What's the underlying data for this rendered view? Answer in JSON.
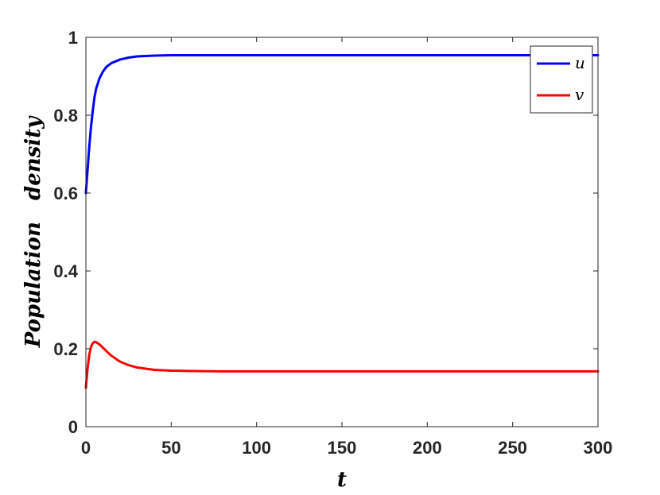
{
  "chart_data": {
    "type": "line",
    "title": "",
    "xlabel": "t",
    "ylabel": "Population   density",
    "xlim": [
      0,
      300
    ],
    "ylim": [
      0,
      1
    ],
    "x_ticks": [
      0,
      50,
      100,
      150,
      200,
      250,
      300
    ],
    "x_tick_labels": [
      "0",
      "50",
      "100",
      "150",
      "200",
      "250",
      "300"
    ],
    "y_ticks": [
      0,
      0.2,
      0.4,
      0.6,
      0.8,
      1
    ],
    "y_tick_labels": [
      "0",
      "0.2",
      "0.4",
      "0.6",
      "0.8",
      "1"
    ],
    "grid": false,
    "legend_position": "top-right",
    "series": [
      {
        "name": "u",
        "color": "#0000ff",
        "x": [
          0,
          1,
          2,
          3,
          4,
          5,
          6,
          8,
          10,
          12,
          15,
          20,
          25,
          30,
          40,
          50,
          60,
          80,
          100,
          150,
          200,
          250,
          300
        ],
        "y": [
          0.6,
          0.66,
          0.72,
          0.77,
          0.81,
          0.845,
          0.868,
          0.895,
          0.912,
          0.924,
          0.934,
          0.943,
          0.948,
          0.951,
          0.953,
          0.954,
          0.954,
          0.954,
          0.954,
          0.954,
          0.954,
          0.954,
          0.954
        ]
      },
      {
        "name": "v",
        "color": "#ff0000",
        "x": [
          0,
          1,
          2,
          3,
          4,
          5,
          6,
          8,
          10,
          12,
          15,
          20,
          25,
          30,
          40,
          50,
          60,
          80,
          100,
          150,
          200,
          250,
          300
        ],
        "y": [
          0.1,
          0.15,
          0.185,
          0.205,
          0.214,
          0.218,
          0.217,
          0.211,
          0.203,
          0.194,
          0.182,
          0.167,
          0.158,
          0.152,
          0.146,
          0.144,
          0.143,
          0.142,
          0.142,
          0.142,
          0.142,
          0.142,
          0.142
        ]
      }
    ]
  }
}
